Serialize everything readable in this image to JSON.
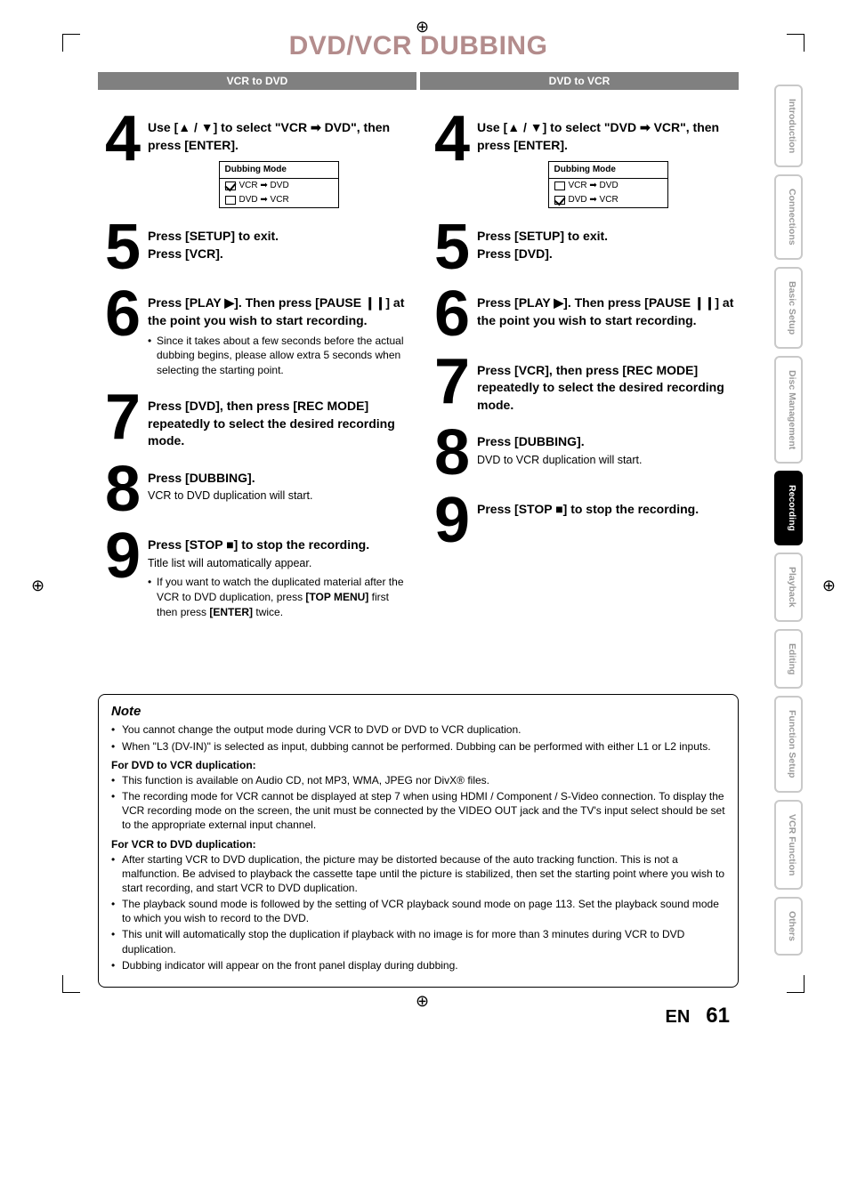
{
  "page_title": "DVD/VCR DUBBING",
  "sections": {
    "left": "VCR to DVD",
    "right": "DVD to VCR"
  },
  "arrows": {
    "up": "▲",
    "down": "▼",
    "right": "▸",
    "rarrow": "➡",
    "play": "▶",
    "pause": "❙❙",
    "stop": "■"
  },
  "dubbox": {
    "title": "Dubbing Mode",
    "row1": "VCR  ➡  DVD",
    "row2": "DVD  ➡  VCR"
  },
  "left_steps": {
    "s4": {
      "num": "4",
      "line": "Use [▲ / ▼] to select \"VCR ➡ DVD\", then press [ENTER]."
    },
    "s5": {
      "num": "5",
      "line1": "Press [SETUP] to exit.",
      "line2": "Press [VCR]."
    },
    "s6": {
      "num": "6",
      "line": "Press [PLAY ▶]. Then press [PAUSE ❙❙] at the point you wish to start recording.",
      "bullet": "Since it takes about a few seconds before the actual dubbing begins, please allow extra 5 seconds when selecting the starting point."
    },
    "s7": {
      "num": "7",
      "line": "Press [DVD], then press [REC MODE] repeatedly to select the desired recording mode."
    },
    "s8": {
      "num": "8",
      "line": "Press [DUBBING].",
      "sub": "VCR to DVD duplication will start."
    },
    "s9": {
      "num": "9",
      "line": "Press [STOP ■] to stop the recording.",
      "sub": "Title list will automatically appear.",
      "bullet": "If you want to watch the duplicated material after the VCR to DVD duplication, press [TOP MENU] first then press [ENTER] twice."
    }
  },
  "right_steps": {
    "s4": {
      "num": "4",
      "line": "Use [▲ / ▼] to select \"DVD ➡ VCR\", then press [ENTER]."
    },
    "s5": {
      "num": "5",
      "line1": "Press [SETUP] to exit.",
      "line2": "Press [DVD]."
    },
    "s6": {
      "num": "6",
      "line": "Press [PLAY ▶]. Then press [PAUSE ❙❙] at the point you wish to start recording."
    },
    "s7": {
      "num": "7",
      "line": "Press [VCR], then press [REC MODE] repeatedly to select the desired recording mode."
    },
    "s8": {
      "num": "8",
      "line": "Press [DUBBING].",
      "sub": "DVD to VCR duplication will start."
    },
    "s9": {
      "num": "9",
      "line": "Press [STOP ■] to stop the recording."
    }
  },
  "note": {
    "title": "Note",
    "general": [
      "You cannot change the output mode during VCR to DVD or DVD to VCR duplication.",
      "When \"L3 (DV-IN)\" is selected as input, dubbing cannot be performed.  Dubbing can be performed with either L1 or L2 inputs."
    ],
    "dvd_hdr": "For DVD to VCR duplication:",
    "dvd": [
      "This function is available on Audio CD, not MP3, WMA, JPEG nor DivX® files.",
      "The recording mode for VCR cannot be displayed at step 7 when using HDMI / Component / S-Video connection. To display the VCR recording mode on the screen, the unit must be connected by the VIDEO OUT jack and the TV's input select should be set to the appropriate external input channel."
    ],
    "vcr_hdr": "For VCR to DVD duplication:",
    "vcr": [
      "After starting VCR to DVD duplication, the picture may be distorted because of the auto tracking function. This is not a malfunction. Be advised to playback the cassette tape until the picture is stabilized, then set the starting point where you wish to start recording, and start VCR to DVD duplication.",
      "The playback sound mode is followed by the setting of VCR playback sound mode on page 113. Set the playback sound mode to which you wish to record to the DVD.",
      "This unit will automatically stop the duplication if playback with no image is for more than 3 minutes during VCR to DVD duplication.",
      "Dubbing indicator will appear on the front panel display during dubbing."
    ]
  },
  "footer": {
    "lang": "EN",
    "page": "61"
  },
  "tabs": [
    "Introduction",
    "Connections",
    "Basic Setup",
    "Disc Management",
    "Recording",
    "Playback",
    "Editing",
    "Function Setup",
    "VCR Function",
    "Others"
  ],
  "active_tab": "Recording",
  "colors": {
    "title": "#b38c8c",
    "bar": "#808080",
    "tab_border": "#c9c9c9",
    "tab_text": "#9a9a9a"
  }
}
